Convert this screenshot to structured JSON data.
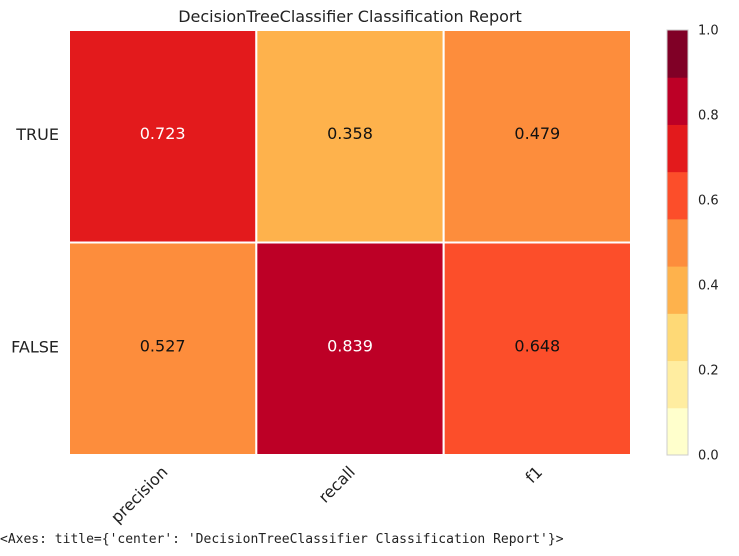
{
  "chart_data": {
    "type": "heatmap",
    "title": "DecisionTreeClassifier Classification Report",
    "rows": [
      "TRUE",
      "FALSE"
    ],
    "columns": [
      "precision",
      "recall",
      "f1"
    ],
    "values": [
      [
        0.723,
        0.358,
        0.479
      ],
      [
        0.527,
        0.839,
        0.648
      ]
    ],
    "value_range": [
      0.0,
      1.0
    ],
    "colorbar": {
      "ticks": [
        "0.0",
        "0.2",
        "0.4",
        "0.6",
        "0.8",
        "1.0"
      ],
      "bins": 9,
      "colors": [
        "#ffffcc",
        "#ffeda0",
        "#fed976",
        "#feb24c",
        "#fd8d3c",
        "#fc4e2a",
        "#e31a1c",
        "#bd0026",
        "#800026"
      ]
    },
    "grid": true,
    "legend": "colorbar right"
  },
  "output_text": "<Axes: title={'center': 'DecisionTreeClassifier Classification Report'}>"
}
